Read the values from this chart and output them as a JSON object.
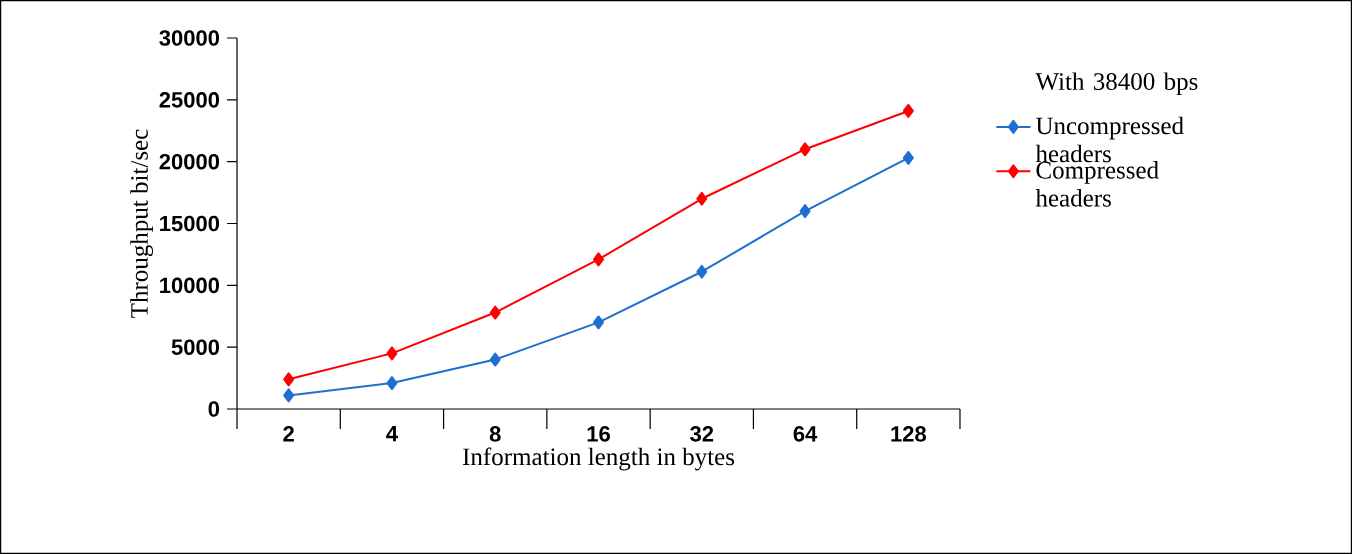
{
  "chart_data": {
    "type": "line",
    "xlabel": "Information length in bytes",
    "ylabel": "Throughput bit/sec",
    "legend_title": "With 38400 bps",
    "categories": [
      "2",
      "4",
      "8",
      "16",
      "32",
      "64",
      "128"
    ],
    "series": [
      {
        "name": "Uncompressed headers",
        "color": "#1f6fd0",
        "values": [
          1100,
          2100,
          4000,
          7000,
          11100,
          16000,
          20300
        ]
      },
      {
        "name": "Compressed headers",
        "color": "#ff0000",
        "values": [
          2400,
          4500,
          7800,
          12100,
          17000,
          21000,
          24100
        ]
      }
    ],
    "ylim": [
      0,
      30000
    ],
    "yticks": [
      0,
      5000,
      10000,
      15000,
      20000,
      25000,
      30000
    ],
    "grid": false,
    "legend": "right",
    "marker": "diamond",
    "line_style": "solid"
  }
}
